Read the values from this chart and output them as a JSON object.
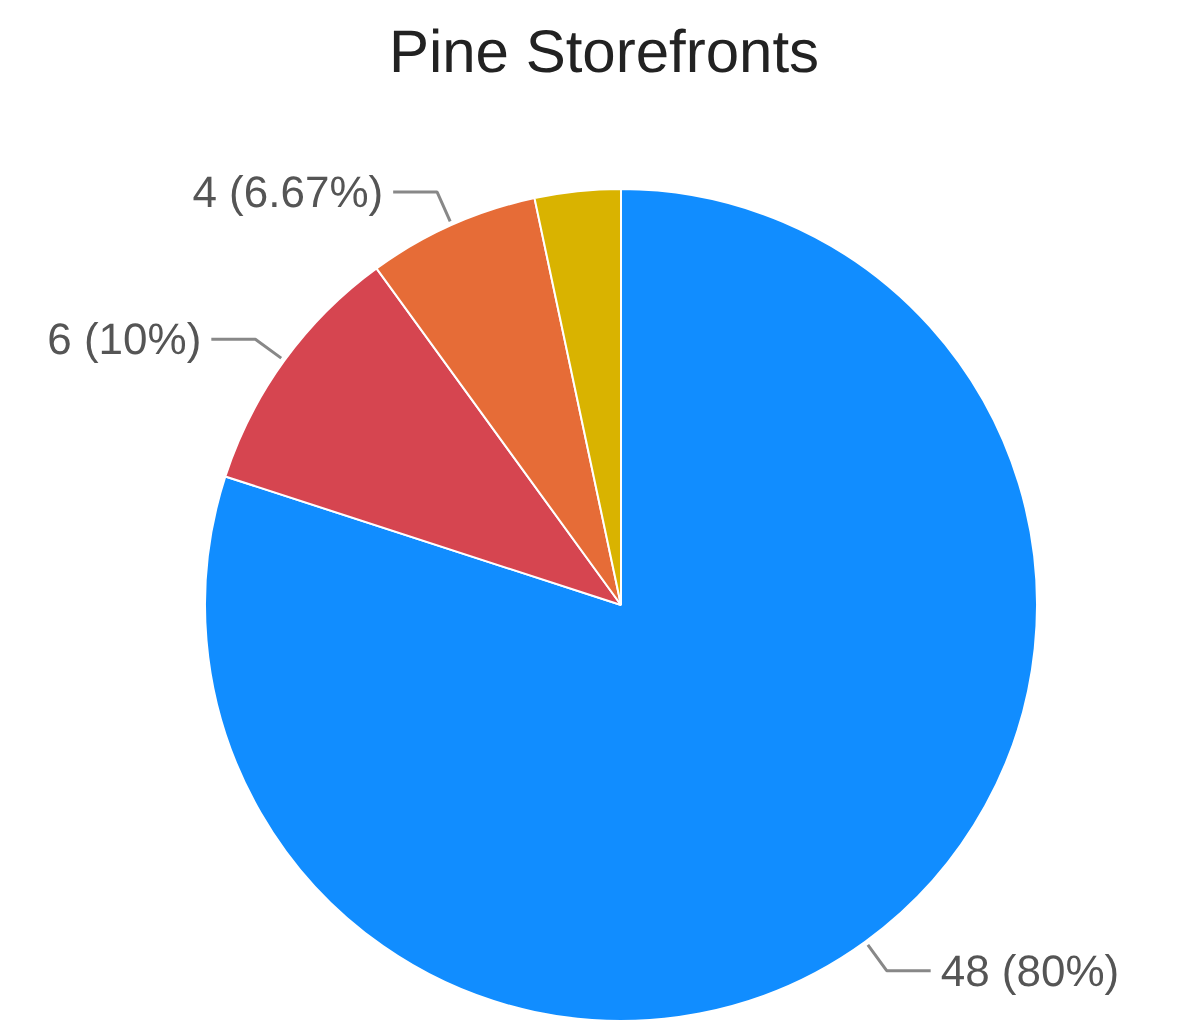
{
  "chart_data": {
    "type": "pie",
    "title": "Pine Storefronts",
    "categories": [
      null,
      null,
      null,
      null
    ],
    "values": [
      48,
      6,
      4,
      2
    ],
    "colors": [
      "#118dff",
      "#d64550",
      "#e66c37",
      "#d9b300"
    ],
    "value_labels": [
      "48 (80%)",
      "6 (10%)",
      "4 (6.67%)",
      null
    ]
  }
}
